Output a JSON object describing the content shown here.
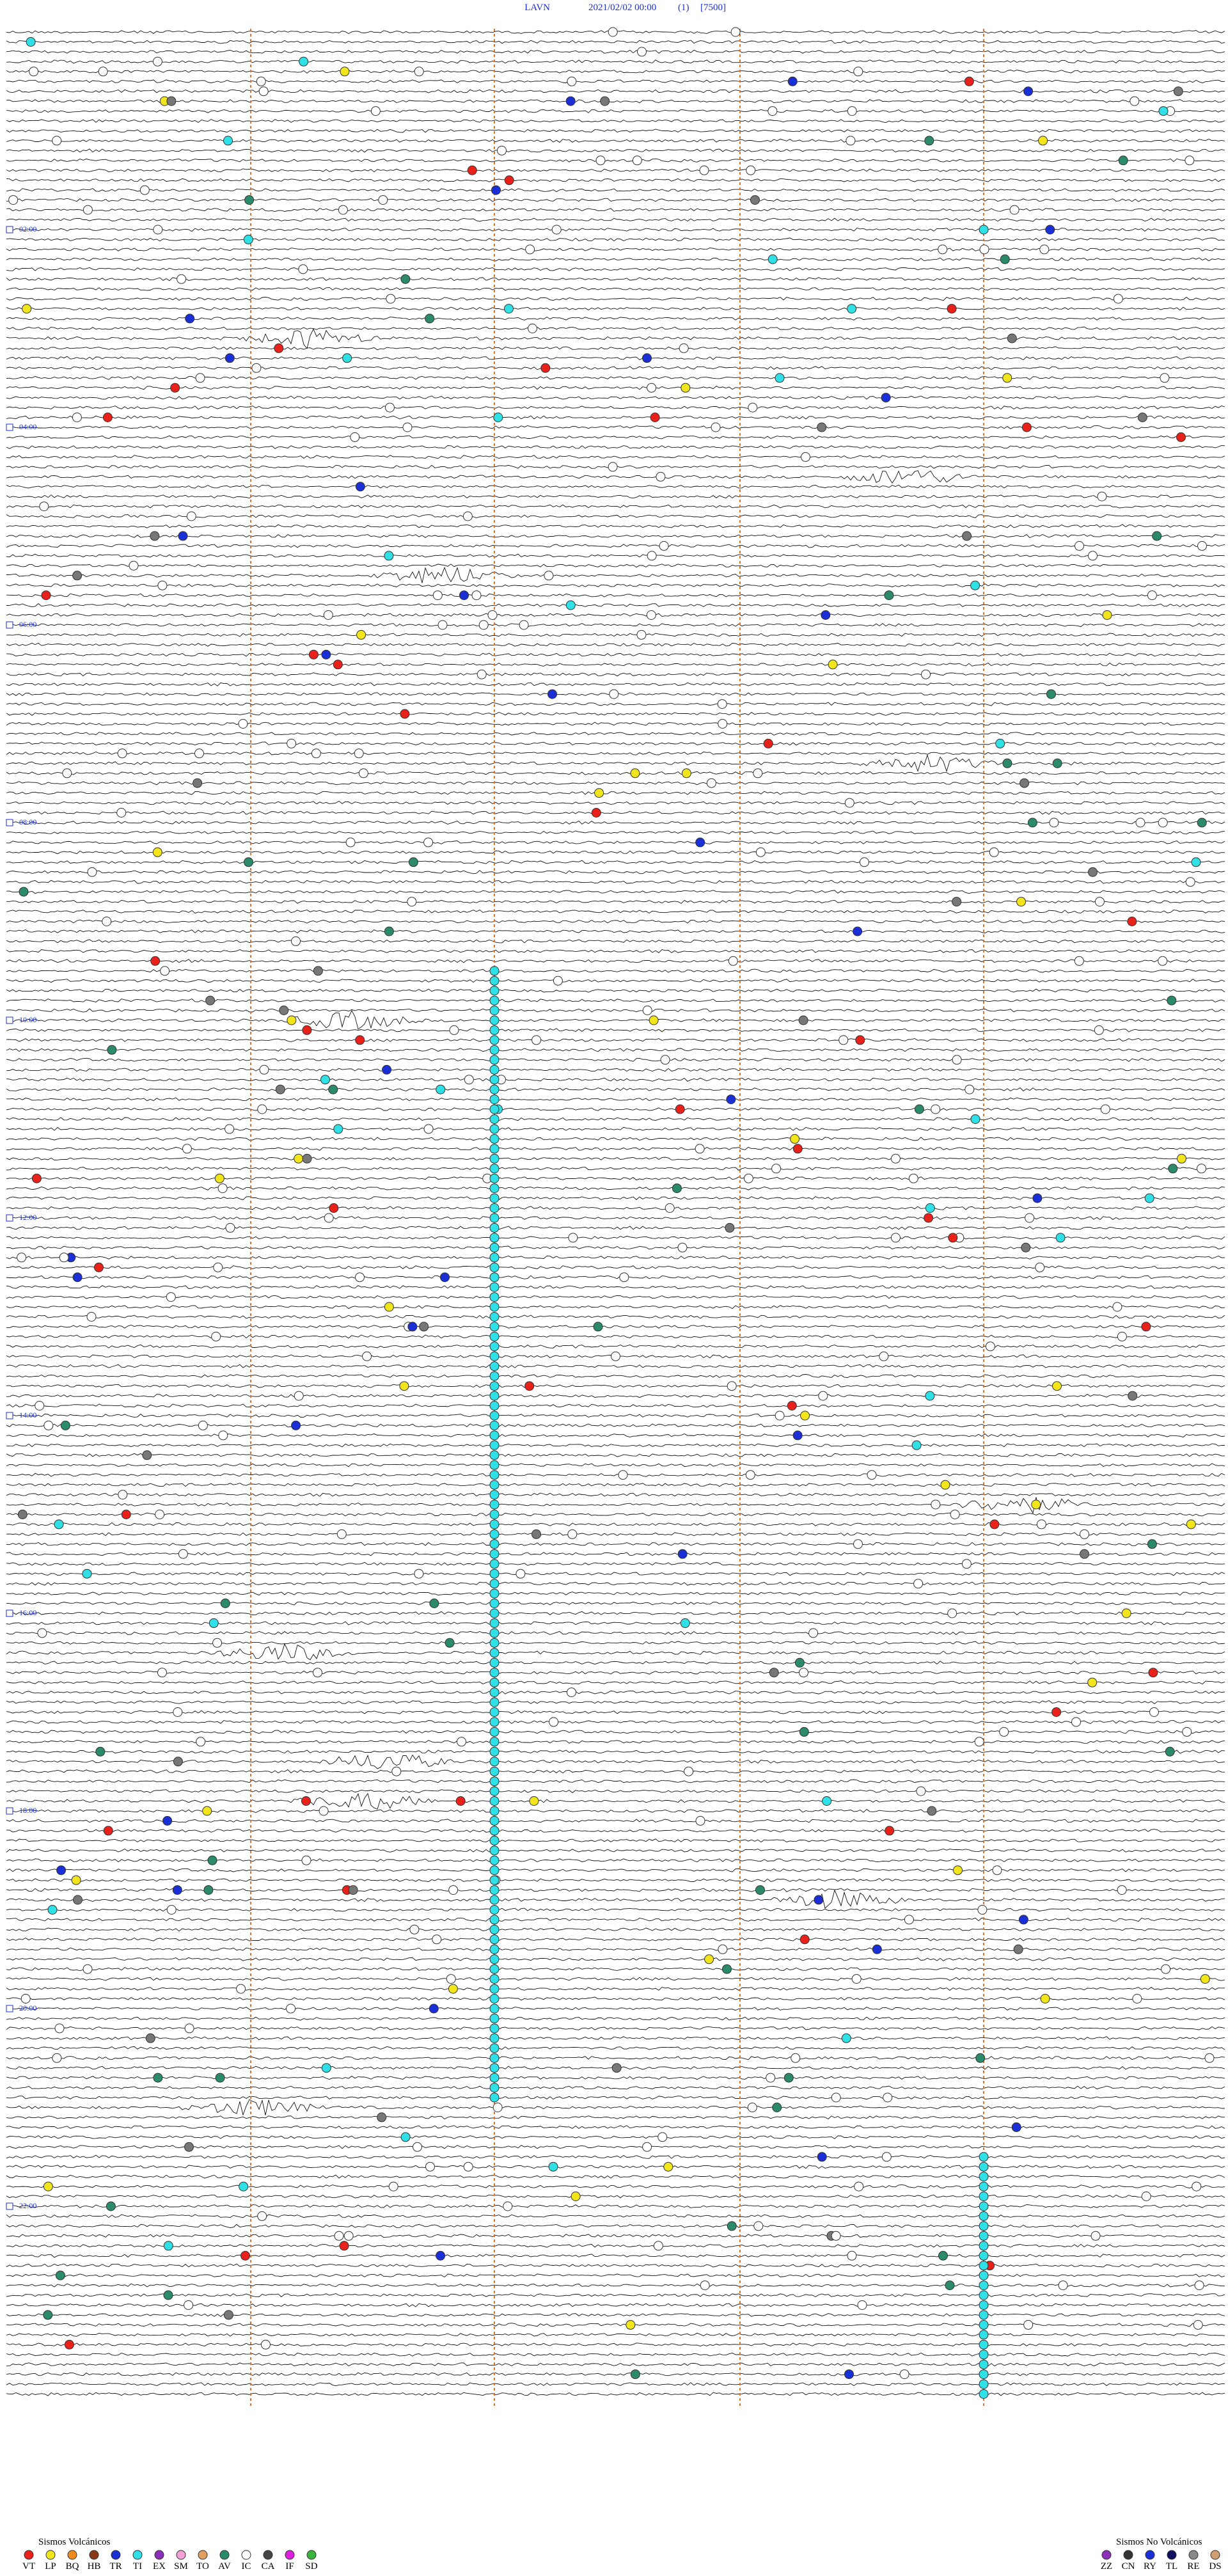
{
  "header": {
    "station": "LAVN",
    "datetime": "2021/02/02 00:00",
    "channel": "(1)",
    "scale": "[7500]"
  },
  "time_labels": [
    "02:00",
    "04:00",
    "06:00",
    "08:00",
    "10:00",
    "12:00",
    "14:00",
    "16:00",
    "18:00",
    "20:00",
    "22:00"
  ],
  "legend_volcanic": {
    "title": "Sismos Volcánicos",
    "items": [
      {
        "code": "VT",
        "color": "#e8211b"
      },
      {
        "code": "LP",
        "color": "#f2e51c"
      },
      {
        "code": "BQ",
        "color": "#f08a1e"
      },
      {
        "code": "HB",
        "color": "#8a3b16"
      },
      {
        "code": "TR",
        "color": "#1a2fd6"
      },
      {
        "code": "TI",
        "color": "#2fe0e6"
      },
      {
        "code": "EX",
        "color": "#8b2fb8"
      },
      {
        "code": "SM",
        "color": "#f2a2d6"
      },
      {
        "code": "TO",
        "color": "#e0a060"
      },
      {
        "code": "AV",
        "color": "#2a8a6a"
      },
      {
        "code": "IC",
        "color": "#ffffff"
      },
      {
        "code": "CA",
        "color": "#444444"
      },
      {
        "code": "IF",
        "color": "#e020e0"
      },
      {
        "code": "SD",
        "color": "#3ab43a"
      }
    ]
  },
  "legend_non_volcanic": {
    "title": "Sismos No Volcánicos",
    "items": [
      {
        "code": "ZZ",
        "color": "#8b2fb8"
      },
      {
        "code": "CN",
        "color": "#333333"
      },
      {
        "code": "RY",
        "color": "#1a2fd6"
      },
      {
        "code": "TL",
        "color": "#101060"
      },
      {
        "code": "RE",
        "color": "#888888"
      },
      {
        "code": "DS",
        "color": "#d0a070"
      }
    ]
  }
}
